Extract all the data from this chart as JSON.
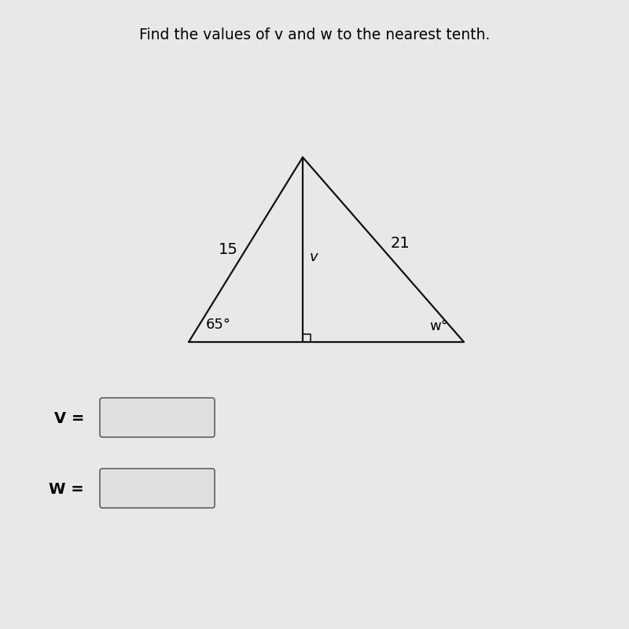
{
  "title": "Find the values of v and w to the nearest tenth.",
  "title_fontsize": 13.5,
  "background_color": "#e8e8e8",
  "triangle_color": "#111111",
  "line_width": 1.6,
  "label_15": "15",
  "label_21": "21",
  "label_v": "v",
  "label_65": "65°",
  "label_w": "w°",
  "font_size_labels": 13,
  "font_size_eq": 13,
  "box_facecolor": "#e0e0e0",
  "box_edgecolor": "#555555"
}
